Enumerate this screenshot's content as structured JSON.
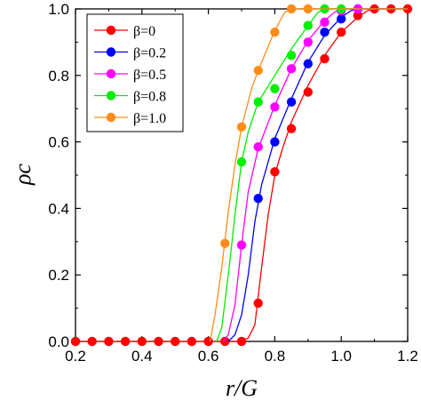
{
  "chart_data": {
    "type": "line",
    "xlabel": "r/G",
    "ylabel": "ρc",
    "xlim": [
      0.2,
      1.2
    ],
    "ylim": [
      0.0,
      1.0
    ],
    "xticks": [
      0.2,
      0.4,
      0.6,
      0.8,
      1.0,
      1.2
    ],
    "xtick_labels": [
      "0.2",
      "0.4",
      "0.6",
      "0.8",
      "1.0",
      "1.2"
    ],
    "yticks": [
      0.0,
      0.2,
      0.4,
      0.6,
      0.8,
      1.0
    ],
    "ytick_labels": [
      "0.0",
      "0.2",
      "0.4",
      "0.6",
      "0.8",
      "1.0"
    ],
    "grid": false,
    "legend_position": "top-left",
    "series": [
      {
        "name": "β=0",
        "color": "#ff0000",
        "points": [
          [
            0.2,
            0
          ],
          [
            0.25,
            0
          ],
          [
            0.3,
            0
          ],
          [
            0.35,
            0
          ],
          [
            0.4,
            0
          ],
          [
            0.45,
            0
          ],
          [
            0.5,
            0
          ],
          [
            0.55,
            0
          ],
          [
            0.6,
            0
          ],
          [
            0.65,
            0
          ],
          [
            0.7,
            0
          ],
          [
            0.75,
            0.115
          ],
          [
            0.8,
            0.51
          ],
          [
            0.85,
            0.64
          ],
          [
            0.9,
            0.75
          ],
          [
            0.95,
            0.85
          ],
          [
            1.0,
            0.93
          ],
          [
            1.05,
            0.98
          ],
          [
            1.1,
            1.0
          ],
          [
            1.15,
            1.0
          ],
          [
            1.2,
            1.0
          ]
        ],
        "curve": [
          [
            0.2,
            0
          ],
          [
            0.66,
            0
          ],
          [
            0.7,
            0.0
          ],
          [
            0.72,
            0.01
          ],
          [
            0.74,
            0.05
          ],
          [
            0.76,
            0.22
          ],
          [
            0.78,
            0.38
          ],
          [
            0.8,
            0.5
          ],
          [
            0.82,
            0.57
          ],
          [
            0.85,
            0.66
          ],
          [
            0.9,
            0.77
          ],
          [
            0.95,
            0.86
          ],
          [
            1.0,
            0.93
          ],
          [
            1.05,
            0.975
          ],
          [
            1.08,
            0.995
          ],
          [
            1.1,
            1.0
          ],
          [
            1.2,
            1.0
          ]
        ]
      },
      {
        "name": "β=0.2",
        "color": "#0000ff",
        "points": [
          [
            0.75,
            0.43
          ],
          [
            0.8,
            0.6
          ],
          [
            0.85,
            0.72
          ],
          [
            0.9,
            0.835
          ],
          [
            0.95,
            0.93
          ],
          [
            1.0,
            0.97
          ],
          [
            1.05,
            1.0
          ]
        ],
        "curve": [
          [
            0.66,
            0
          ],
          [
            0.68,
            0.02
          ],
          [
            0.7,
            0.08
          ],
          [
            0.72,
            0.2
          ],
          [
            0.74,
            0.36
          ],
          [
            0.76,
            0.47
          ],
          [
            0.8,
            0.61
          ],
          [
            0.85,
            0.73
          ],
          [
            0.9,
            0.84
          ],
          [
            0.95,
            0.92
          ],
          [
            1.0,
            0.975
          ],
          [
            1.03,
            0.995
          ],
          [
            1.05,
            1.0
          ],
          [
            1.2,
            1.0
          ]
        ]
      },
      {
        "name": "β=0.5",
        "color": "#ff00ff",
        "points": [
          [
            0.7,
            0.29
          ],
          [
            0.75,
            0.585
          ],
          [
            0.8,
            0.705
          ],
          [
            0.85,
            0.82
          ],
          [
            0.9,
            0.9
          ],
          [
            0.95,
            0.96
          ],
          [
            1.0,
            0.995
          ],
          [
            1.05,
            1.0
          ]
        ],
        "curve": [
          [
            0.645,
            0
          ],
          [
            0.66,
            0.02
          ],
          [
            0.68,
            0.11
          ],
          [
            0.7,
            0.29
          ],
          [
            0.72,
            0.45
          ],
          [
            0.75,
            0.58
          ],
          [
            0.8,
            0.71
          ],
          [
            0.85,
            0.82
          ],
          [
            0.9,
            0.905
          ],
          [
            0.95,
            0.965
          ],
          [
            0.98,
            0.99
          ],
          [
            1.0,
            1.0
          ],
          [
            1.2,
            1.0
          ]
        ]
      },
      {
        "name": "β=0.8",
        "color": "#00ee00",
        "points": [
          [
            0.7,
            0.54
          ],
          [
            0.75,
            0.72
          ],
          [
            0.8,
            0.76
          ],
          [
            0.85,
            0.86
          ],
          [
            0.9,
            0.95
          ],
          [
            0.95,
            1.0
          ],
          [
            1.0,
            1.0
          ]
        ],
        "curve": [
          [
            0.625,
            0
          ],
          [
            0.64,
            0.04
          ],
          [
            0.66,
            0.2
          ],
          [
            0.68,
            0.38
          ],
          [
            0.7,
            0.54
          ],
          [
            0.72,
            0.63
          ],
          [
            0.75,
            0.72
          ],
          [
            0.8,
            0.8
          ],
          [
            0.85,
            0.88
          ],
          [
            0.9,
            0.95
          ],
          [
            0.93,
            0.99
          ],
          [
            0.95,
            1.0
          ],
          [
            1.2,
            1.0
          ]
        ]
      },
      {
        "name": "β=1.0",
        "color": "#ff8c1a",
        "points": [
          [
            0.65,
            0.295
          ],
          [
            0.7,
            0.645
          ],
          [
            0.75,
            0.815
          ],
          [
            0.8,
            0.93
          ],
          [
            0.85,
            1.0
          ],
          [
            0.9,
            1.0
          ]
        ],
        "curve": [
          [
            0.605,
            0
          ],
          [
            0.62,
            0.08
          ],
          [
            0.64,
            0.22
          ],
          [
            0.66,
            0.39
          ],
          [
            0.68,
            0.53
          ],
          [
            0.7,
            0.645
          ],
          [
            0.73,
            0.76
          ],
          [
            0.75,
            0.815
          ],
          [
            0.8,
            0.935
          ],
          [
            0.83,
            0.99
          ],
          [
            0.85,
            1.0
          ],
          [
            1.2,
            1.0
          ]
        ]
      }
    ]
  }
}
